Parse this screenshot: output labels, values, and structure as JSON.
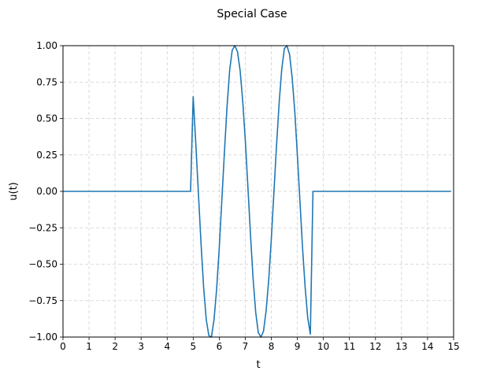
{
  "chart_data": {
    "type": "line",
    "title": "Special Case",
    "xlabel": "t",
    "ylabel": "u(t)",
    "xlim": [
      0,
      15
    ],
    "ylim": [
      -1.0,
      1.0
    ],
    "xticks": [
      0,
      1,
      2,
      3,
      4,
      5,
      6,
      7,
      8,
      9,
      10,
      11,
      12,
      13,
      14,
      15
    ],
    "xtick_labels": [
      "0",
      "1",
      "2",
      "3",
      "4",
      "5",
      "6",
      "7",
      "8",
      "9",
      "10",
      "11",
      "12",
      "13",
      "14",
      "15"
    ],
    "yticks": [
      -1.0,
      -0.75,
      -0.5,
      -0.25,
      0.0,
      0.25,
      0.5,
      0.75,
      1.0
    ],
    "ytick_labels": [
      "−1.00",
      "−0.75",
      "−0.50",
      "−0.25",
      "0.00",
      "0.25",
      "0.50",
      "0.75",
      "1.00"
    ],
    "grid": true,
    "line_color": "#1f77b4",
    "series": [
      {
        "x": [
          0,
          4.9,
          5.0,
          5.1,
          5.2,
          5.3,
          5.4,
          5.5,
          5.6,
          5.7,
          5.8,
          5.9,
          6.0,
          6.1,
          6.2,
          6.3,
          6.4,
          6.5,
          6.6,
          6.7,
          6.8,
          6.9,
          7.0,
          7.1,
          7.2,
          7.3,
          7.4,
          7.5,
          7.6,
          7.7,
          7.8,
          7.9,
          8.0,
          8.1,
          8.2,
          8.3,
          8.4,
          8.5,
          8.6,
          8.7,
          8.8,
          8.9,
          9.0,
          9.1,
          9.2,
          9.3,
          9.4,
          9.5,
          9.6,
          9.7,
          9.8,
          9.9,
          10.0,
          14.9
        ],
        "y": [
          0,
          0,
          0.65,
          0.33,
          -0.01,
          -0.36,
          -0.66,
          -0.88,
          -0.99,
          -1.0,
          -0.88,
          -0.67,
          -0.39,
          -0.06,
          0.27,
          0.58,
          0.83,
          0.97,
          1.0,
          0.96,
          0.83,
          0.62,
          0.35,
          0.03,
          -0.3,
          -0.6,
          -0.83,
          -0.97,
          -1.0,
          -0.96,
          -0.82,
          -0.61,
          -0.33,
          -0.01,
          0.31,
          0.61,
          0.84,
          0.98,
          1.0,
          0.94,
          0.78,
          0.55,
          0.25,
          -0.07,
          -0.39,
          -0.66,
          -0.87,
          -0.98,
          0,
          0,
          0,
          0,
          0,
          0
        ]
      }
    ]
  }
}
